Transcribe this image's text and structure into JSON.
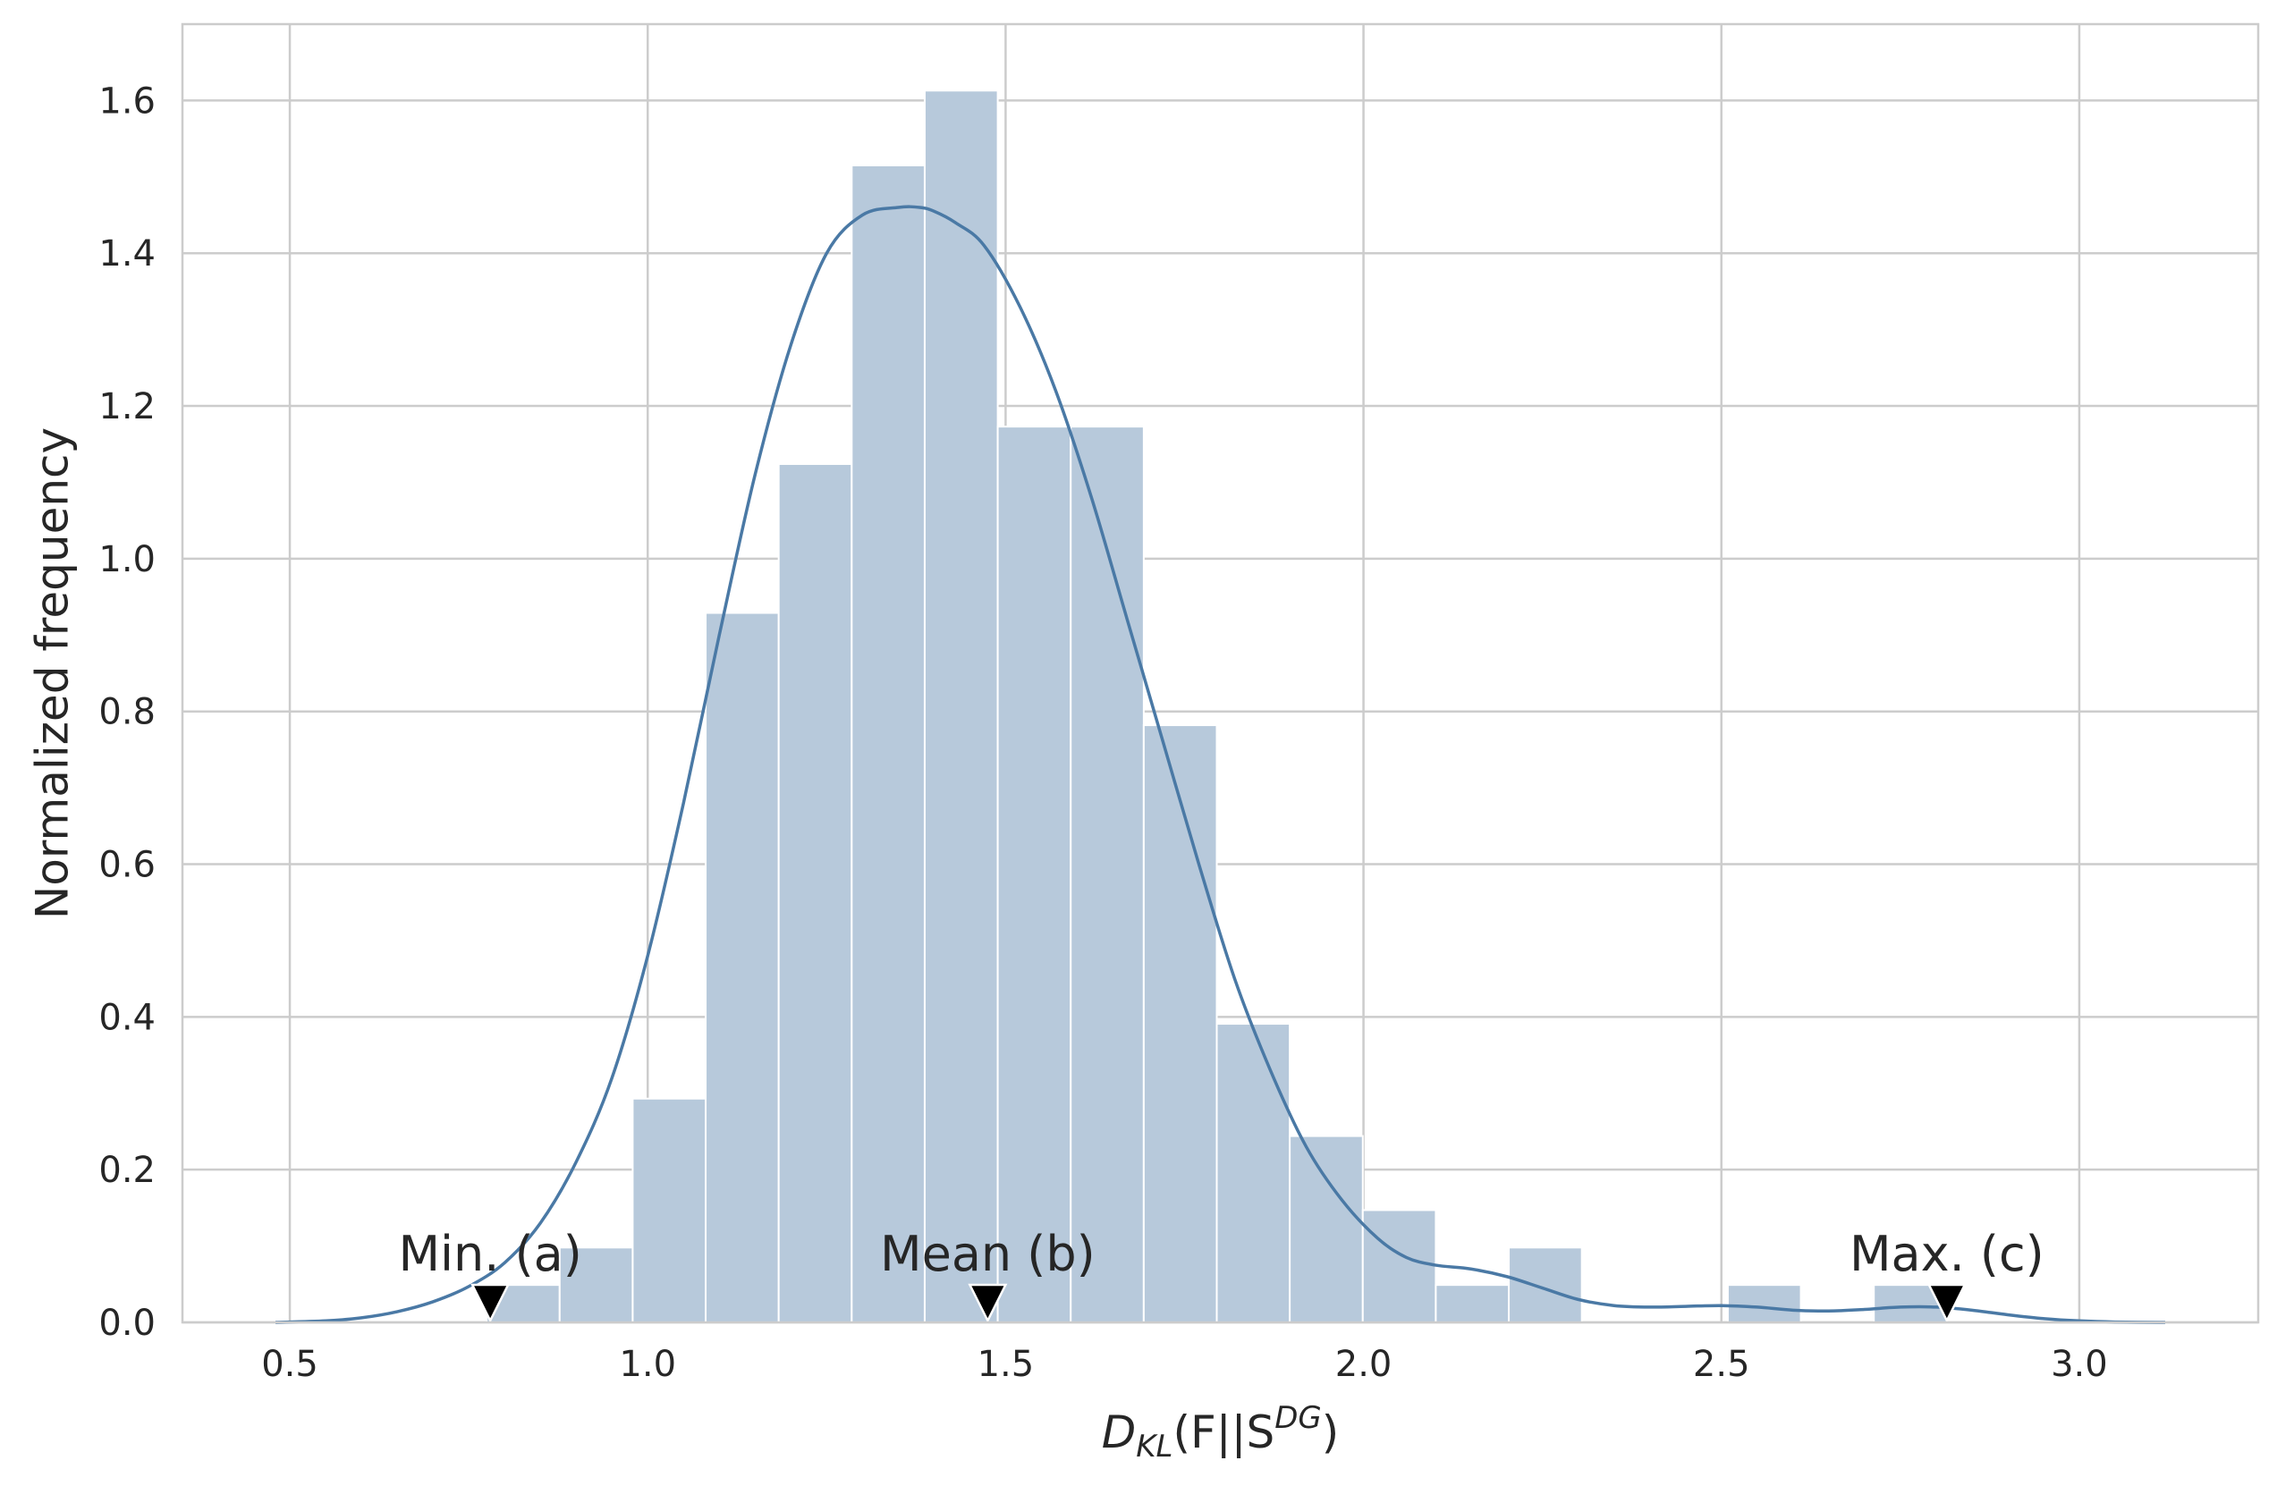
{
  "chart_data": {
    "type": "bar",
    "subtype": "histogram-with-kde",
    "xlabel": {
      "base": "D",
      "sub": "KL",
      "mid": "(F||S",
      "sup": "DG",
      "end": ")"
    },
    "ylabel": "Normalized frequency",
    "xlim": [
      0.35,
      3.25
    ],
    "ylim": [
      0.0,
      1.7
    ],
    "xticks": [
      0.5,
      1.0,
      1.5,
      2.0,
      2.5,
      3.0
    ],
    "xtick_labels": [
      "0.5",
      "1.0",
      "1.5",
      "2.0",
      "2.5",
      "3.0"
    ],
    "yticks": [
      0.0,
      0.2,
      0.4,
      0.6,
      0.8,
      1.0,
      1.2,
      1.4,
      1.6
    ],
    "ytick_labels": [
      "0.0",
      "0.2",
      "0.4",
      "0.6",
      "0.8",
      "1.0",
      "1.2",
      "1.4",
      "1.6"
    ],
    "grid": true,
    "colors": {
      "bar": "#b7c9db",
      "kde": "#4a79a5",
      "grid": "#cccccc",
      "marker": "#000000",
      "text": "#262626"
    },
    "bins": [
      {
        "x0": 0.775,
        "x1": 0.877,
        "value": 0.049
      },
      {
        "x0": 0.877,
        "x1": 0.979,
        "value": 0.098
      },
      {
        "x0": 0.979,
        "x1": 1.081,
        "value": 0.293
      },
      {
        "x0": 1.081,
        "x1": 1.183,
        "value": 0.929
      },
      {
        "x0": 1.183,
        "x1": 1.285,
        "value": 1.124
      },
      {
        "x0": 1.285,
        "x1": 1.387,
        "value": 1.515
      },
      {
        "x0": 1.387,
        "x1": 1.489,
        "value": 1.613
      },
      {
        "x0": 1.489,
        "x1": 1.591,
        "value": 1.173
      },
      {
        "x0": 1.591,
        "x1": 1.693,
        "value": 1.173
      },
      {
        "x0": 1.693,
        "x1": 1.795,
        "value": 0.782
      },
      {
        "x0": 1.795,
        "x1": 1.897,
        "value": 0.391
      },
      {
        "x0": 1.897,
        "x1": 1.999,
        "value": 0.244
      },
      {
        "x0": 1.999,
        "x1": 2.101,
        "value": 0.147
      },
      {
        "x0": 2.101,
        "x1": 2.203,
        "value": 0.049
      },
      {
        "x0": 2.203,
        "x1": 2.305,
        "value": 0.098
      },
      {
        "x0": 2.305,
        "x1": 2.407,
        "value": 0.0
      },
      {
        "x0": 2.407,
        "x1": 2.509,
        "value": 0.0
      },
      {
        "x0": 2.509,
        "x1": 2.611,
        "value": 0.049
      },
      {
        "x0": 2.611,
        "x1": 2.713,
        "value": 0.0
      },
      {
        "x0": 2.713,
        "x1": 2.815,
        "value": 0.049
      }
    ],
    "kde": {
      "x": [
        0.48,
        0.55,
        0.6,
        0.65,
        0.7,
        0.75,
        0.8,
        0.85,
        0.9,
        0.95,
        1.0,
        1.05,
        1.1,
        1.15,
        1.2,
        1.25,
        1.3,
        1.35,
        1.38,
        1.4,
        1.43,
        1.47,
        1.52,
        1.57,
        1.62,
        1.67,
        1.72,
        1.77,
        1.82,
        1.87,
        1.92,
        1.97,
        2.02,
        2.06,
        2.1,
        2.15,
        2.2,
        2.25,
        2.3,
        2.35,
        2.4,
        2.45,
        2.5,
        2.55,
        2.6,
        2.65,
        2.7,
        2.75,
        2.8,
        2.85,
        2.9,
        2.95,
        3.0,
        3.05,
        3.12
      ],
      "y": [
        0.0,
        0.002,
        0.006,
        0.014,
        0.027,
        0.047,
        0.078,
        0.13,
        0.21,
        0.32,
        0.48,
        0.68,
        0.9,
        1.11,
        1.28,
        1.4,
        1.45,
        1.46,
        1.46,
        1.455,
        1.44,
        1.41,
        1.33,
        1.22,
        1.08,
        0.92,
        0.76,
        0.6,
        0.45,
        0.33,
        0.23,
        0.16,
        0.11,
        0.085,
        0.075,
        0.07,
        0.06,
        0.045,
        0.03,
        0.022,
        0.02,
        0.021,
        0.022,
        0.02,
        0.016,
        0.015,
        0.017,
        0.02,
        0.02,
        0.016,
        0.01,
        0.005,
        0.002,
        0.0005,
        0.0
      ]
    },
    "annotations": [
      {
        "label": "Min. (a)",
        "x": 0.78,
        "y": 0.0
      },
      {
        "label": "Mean (b)",
        "x": 1.475,
        "y": 0.0
      },
      {
        "label": "Max. (c)",
        "x": 2.815,
        "y": 0.0
      }
    ]
  }
}
